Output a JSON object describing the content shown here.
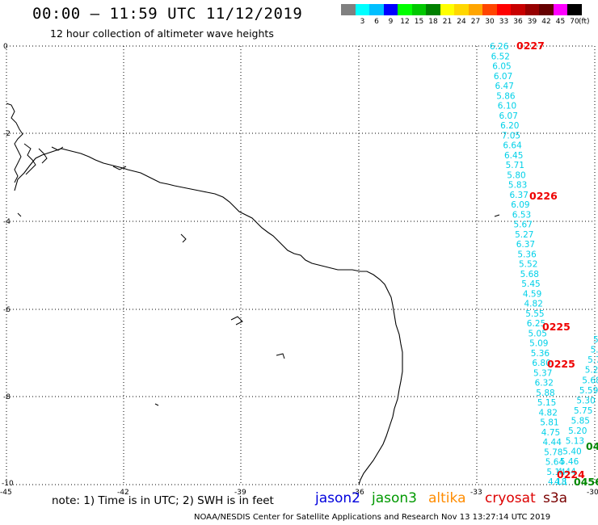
{
  "header": {
    "title": "00:00 – 11:59 UTC 11/12/2019",
    "subtitle": "12 hour collection of altimeter wave heights"
  },
  "scale": {
    "unit": "(ft)",
    "bins": [
      {
        "label": "",
        "color": "#808080"
      },
      {
        "label": "3",
        "color": "#00ffff"
      },
      {
        "label": "6",
        "color": "#00bfff"
      },
      {
        "label": "9",
        "color": "#0000ff"
      },
      {
        "label": "12",
        "color": "#00ff00"
      },
      {
        "label": "15",
        "color": "#00c800"
      },
      {
        "label": "18",
        "color": "#008000"
      },
      {
        "label": "21",
        "color": "#ffff00"
      },
      {
        "label": "24",
        "color": "#ffd700"
      },
      {
        "label": "27",
        "color": "#ffa500"
      },
      {
        "label": "30",
        "color": "#ff4500"
      },
      {
        "label": "33",
        "color": "#ff0000"
      },
      {
        "label": "36",
        "color": "#c80000"
      },
      {
        "label": "39",
        "color": "#960000"
      },
      {
        "label": "42",
        "color": "#640000"
      },
      {
        "label": "45",
        "color": "#ff00ff"
      },
      {
        "label": "70",
        "color": "#000000"
      }
    ]
  },
  "axes": {
    "lat_labels": [
      "0",
      "-2",
      "-4",
      "-6",
      "-8",
      "-10"
    ],
    "lon_labels": [
      "-45",
      "-42",
      "-39",
      "-36",
      "-33",
      "-30"
    ]
  },
  "tracks": {
    "track_a_values": [
      "6.26",
      "6.52",
      "6.05",
      "6.07",
      "6.47",
      "5.86",
      "6.10",
      "6.07",
      "6.20",
      "7.05",
      "6.64",
      "6.45",
      "5.71",
      "5.80",
      "5.83",
      "6.37",
      "6.09",
      "6.53",
      "5.67",
      "5.27",
      "6.37",
      "5.36",
      "5.52",
      "5.68",
      "5.45",
      "4.59",
      "4.82",
      "5.55",
      "6.25",
      "5.05",
      "5.09",
      "5.36",
      "6.80",
      "5.37",
      "6.32",
      "5.88",
      "5.15",
      "4.82",
      "5.81",
      "4.75",
      "4.44",
      "5.78",
      "5.64",
      "5.14",
      "4.18"
    ],
    "track_b_values": [
      "5.",
      "5.",
      "5.7",
      "5.2",
      "5.68",
      "5.59",
      "5.30",
      "5.75",
      "5.85",
      "5.20",
      "5.13",
      "5.40",
      "5.46",
      "4.44",
      "4.1"
    ],
    "time_marks": [
      {
        "label": "0227",
        "color": "#ee0000"
      },
      {
        "label": "0226",
        "color": "#ee0000"
      },
      {
        "label": "0225",
        "color": "#ee0000"
      },
      {
        "label": "0225",
        "color": "#ee0000"
      },
      {
        "label": "0224",
        "color": "#ee0000"
      },
      {
        "label": "04",
        "color": "#008800"
      },
      {
        "label": "0456",
        "color": "#008800"
      }
    ]
  },
  "footer": {
    "note": "note: 1) Time is in UTC; 2) SWH is in feet",
    "satellites": [
      {
        "name": "jason2",
        "color": "#0000dd"
      },
      {
        "name": "jason3",
        "color": "#009900"
      },
      {
        "name": "altika",
        "color": "#ff8c00"
      },
      {
        "name": "cryosat",
        "color": "#dd0000"
      },
      {
        "name": "s3a",
        "color": "#7a0000"
      }
    ],
    "credit": "NOAA/NESDIS Center for Satellite Applications and Research    Nov 13 13:27:14 UTC 2019"
  }
}
